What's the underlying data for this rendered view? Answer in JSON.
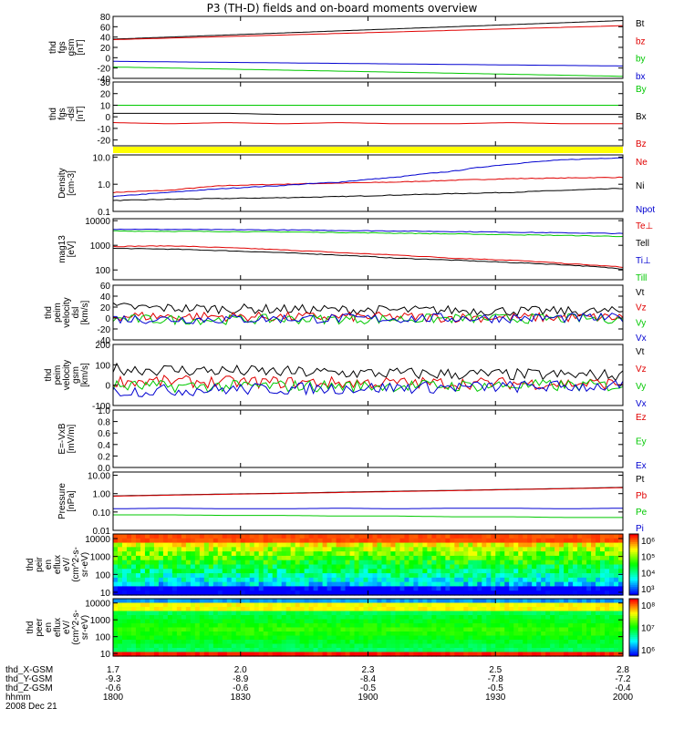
{
  "title": "P3 (TH-D) fields and on-board moments overview",
  "chart_data": [
    {
      "id": "fgs_gsm",
      "type": "line",
      "ylabel": [
        "thd",
        "fgs",
        "gsm",
        "[nT]"
      ],
      "ylim": [
        -40,
        80
      ],
      "ticks": [
        {
          "v": 80,
          "l": "80"
        },
        {
          "v": 60,
          "l": "60"
        },
        {
          "v": 40,
          "l": "40"
        },
        {
          "v": 20,
          "l": "20"
        },
        {
          "v": 0,
          "l": "0"
        },
        {
          "v": -20,
          "l": "-20"
        },
        {
          "v": -40,
          "l": "-40"
        }
      ],
      "series": [
        {
          "name": "Bt",
          "color": "#000000",
          "values": [
            36,
            40,
            44,
            48,
            52,
            56,
            60,
            64,
            68,
            72
          ]
        },
        {
          "name": "bz",
          "color": "#e00000",
          "values": [
            35,
            38,
            41,
            44,
            47,
            50,
            53,
            56,
            59,
            62
          ]
        },
        {
          "name": "by",
          "color": "#00c800",
          "values": [
            -18,
            -20,
            -22,
            -24,
            -26,
            -28,
            -30,
            -32,
            -34,
            -36
          ]
        },
        {
          "name": "bx",
          "color": "#0000d0",
          "values": [
            -7,
            -8,
            -9,
            -10,
            -11,
            -12,
            -13,
            -14,
            -15,
            -16
          ]
        }
      ]
    },
    {
      "id": "fgs_dsl",
      "type": "line",
      "ylabel": [
        "thd",
        "fgs",
        "-dsl",
        "[nT]"
      ],
      "ylim": [
        -25,
        30
      ],
      "ticks": [
        {
          "v": 30,
          "l": "30"
        },
        {
          "v": 20,
          "l": "20"
        },
        {
          "v": 10,
          "l": "10"
        },
        {
          "v": 0,
          "l": "0"
        },
        {
          "v": -10,
          "l": "-10"
        },
        {
          "v": -20,
          "l": "-20"
        }
      ],
      "series": [
        {
          "name": "By",
          "color": "#00c800",
          "values": [
            10,
            10,
            10,
            10,
            10,
            10,
            10,
            10,
            10,
            10
          ]
        },
        {
          "name": "Bx",
          "color": "#000000",
          "values": [
            3,
            3,
            3,
            2,
            2,
            2,
            2,
            2,
            2,
            2
          ]
        },
        {
          "name": "Bz",
          "color": "#e00000",
          "values": [
            -5,
            -6,
            -5,
            -6,
            -5,
            -6,
            -6,
            -5,
            -6,
            -6
          ]
        }
      ]
    },
    {
      "id": "density",
      "type": "line",
      "log": true,
      "ylabel": [
        "Density",
        "[cm-3]"
      ],
      "ylim": [
        0.1,
        12
      ],
      "ticks": [
        {
          "v": 10,
          "l": "10.0"
        },
        {
          "v": 1,
          "l": "1.0"
        },
        {
          "v": 0.1,
          "l": "0.1"
        }
      ],
      "series": [
        {
          "name": "Ne",
          "color": "#e00000",
          "values": [
            0.5,
            0.6,
            0.9,
            1.0,
            1.1,
            1.2,
            1.4,
            1.6,
            1.7,
            1.8
          ]
        },
        {
          "name": "Ni",
          "color": "#000000",
          "values": [
            0.25,
            0.28,
            0.3,
            0.32,
            0.35,
            0.4,
            0.45,
            0.5,
            0.6,
            0.7
          ]
        },
        {
          "name": "Npot",
          "color": "#0000d0",
          "values": [
            0.35,
            0.5,
            0.7,
            0.9,
            1.2,
            1.8,
            3,
            5.5,
            8,
            9.5
          ]
        }
      ]
    },
    {
      "id": "temp",
      "type": "line",
      "log": true,
      "ylabel": [
        "mag13",
        "[eV]"
      ],
      "ylim": [
        40,
        12000
      ],
      "ticks": [
        {
          "v": 10000,
          "l": "10000"
        },
        {
          "v": 1000,
          "l": "1000"
        },
        {
          "v": 100,
          "l": "100"
        }
      ],
      "series": [
        {
          "name": "Te⊥",
          "color": "#e00000",
          "values": [
            900,
            950,
            800,
            650,
            500,
            400,
            300,
            250,
            180,
            130
          ]
        },
        {
          "name": "Tell",
          "color": "#000000",
          "values": [
            750,
            700,
            600,
            500,
            400,
            300,
            250,
            200,
            160,
            110
          ]
        },
        {
          "name": "Ti⊥",
          "color": "#0000d0",
          "values": [
            4500,
            4400,
            4300,
            4200,
            4000,
            3800,
            3600,
            3400,
            3200,
            3000
          ]
        },
        {
          "name": "Till",
          "color": "#00c800",
          "values": [
            3800,
            3700,
            3600,
            3500,
            3300,
            3100,
            2900,
            2700,
            2500,
            2300
          ]
        }
      ]
    },
    {
      "id": "peim_dsl",
      "type": "line",
      "ylabel": [
        "thd",
        "peim",
        "velocity",
        "dsl",
        "[km/s]"
      ],
      "ylim": [
        -40,
        60
      ],
      "ticks": [
        {
          "v": 60,
          "l": "60"
        },
        {
          "v": 40,
          "l": "40"
        },
        {
          "v": 20,
          "l": "20"
        },
        {
          "v": 0,
          "l": "0"
        },
        {
          "v": -20,
          "l": "-20"
        },
        {
          "v": -40,
          "l": "-40"
        }
      ],
      "series": [
        {
          "name": "Vt",
          "color": "#000000",
          "values": [
            20,
            18,
            17,
            16,
            15,
            14,
            14,
            13,
            12,
            12
          ]
        },
        {
          "name": "Vz",
          "color": "#e00000",
          "values": [
            4,
            3,
            3,
            2,
            2,
            2,
            1,
            1,
            1,
            1
          ]
        },
        {
          "name": "Vy",
          "color": "#00c800",
          "values": [
            -2,
            -3,
            -3,
            -2,
            -2,
            -2,
            -1,
            -1,
            -1,
            -1
          ]
        },
        {
          "name": "Vx",
          "color": "#0000d0",
          "values": [
            -1,
            -2,
            -2,
            -1,
            -1,
            -1,
            0,
            0,
            0,
            0
          ]
        }
      ]
    },
    {
      "id": "peim_gsm",
      "type": "line",
      "ylabel": [
        "thd",
        "peim",
        "velocity",
        "gsm",
        "[km/s]"
      ],
      "ylim": [
        -100,
        200
      ],
      "ticks": [
        {
          "v": 200,
          "l": "200"
        },
        {
          "v": 100,
          "l": "100"
        },
        {
          "v": 0,
          "l": "0"
        },
        {
          "v": -100,
          "l": "-100"
        }
      ],
      "series": [
        {
          "name": "Vt",
          "color": "#000000",
          "values": [
            80,
            75,
            70,
            65,
            60,
            58,
            55,
            52,
            50,
            48
          ]
        },
        {
          "name": "Vz",
          "color": "#e00000",
          "values": [
            20,
            18,
            15,
            14,
            12,
            11,
            10,
            9,
            8,
            8
          ]
        },
        {
          "name": "Vy",
          "color": "#00c800",
          "values": [
            -5,
            -6,
            -5,
            -4,
            -4,
            -3,
            -3,
            -2,
            -2,
            -2
          ]
        },
        {
          "name": "Vx",
          "color": "#0000d0",
          "values": [
            -30,
            -25,
            -20,
            -18,
            -15,
            -12,
            -10,
            -8,
            -6,
            -5
          ]
        }
      ]
    },
    {
      "id": "efield",
      "type": "line",
      "ylabel": [
        "E=-VxB",
        "[mV/m]"
      ],
      "ylim": [
        0,
        1
      ],
      "ticks": [
        {
          "v": 1,
          "l": "1.0"
        },
        {
          "v": 0.8,
          "l": "0.8"
        },
        {
          "v": 0.6,
          "l": "0.6"
        },
        {
          "v": 0.4,
          "l": "0.4"
        },
        {
          "v": 0.2,
          "l": "0.2"
        },
        {
          "v": 0,
          "l": "0.0"
        }
      ],
      "series": [
        {
          "name": "Ez",
          "color": "#e00000",
          "values": []
        },
        {
          "name": "Ey",
          "color": "#00c800",
          "values": []
        },
        {
          "name": "Ex",
          "color": "#0000d0",
          "values": []
        }
      ]
    },
    {
      "id": "pressure",
      "type": "line",
      "log": true,
      "ylabel": [
        "Pressure",
        "[nPa]"
      ],
      "ylim": [
        0.01,
        15
      ],
      "ticks": [
        {
          "v": 10,
          "l": "10.00"
        },
        {
          "v": 1,
          "l": "1.00"
        },
        {
          "v": 0.1,
          "l": "0.10"
        },
        {
          "v": 0.01,
          "l": "0.01"
        }
      ],
      "series": [
        {
          "name": "Pt",
          "color": "#000000",
          "values": [
            0.75,
            0.85,
            0.95,
            1.05,
            1.2,
            1.35,
            1.5,
            1.7,
            1.9,
            2.2
          ]
        },
        {
          "name": "Pb",
          "color": "#e00000",
          "values": [
            0.72,
            0.82,
            0.92,
            1.02,
            1.15,
            1.3,
            1.45,
            1.65,
            1.85,
            2.1
          ]
        },
        {
          "name": "Pe",
          "color": "#00c800",
          "values": [
            0.07,
            0.07,
            0.065,
            0.065,
            0.06,
            0.06,
            0.055,
            0.055,
            0.05,
            0.05
          ]
        },
        {
          "name": "Pi",
          "color": "#0000d0",
          "values": [
            0.15,
            0.16,
            0.15,
            0.15,
            0.16,
            0.15,
            0.16,
            0.16,
            0.15,
            0.16
          ]
        }
      ]
    },
    {
      "id": "peir_spec",
      "type": "heatmap",
      "log": true,
      "ylabel": [
        "thd",
        "peir",
        "en",
        "eflux",
        "eV/",
        "(cm^2-s-",
        "sr-eV)"
      ],
      "ylim": [
        7,
        18000
      ],
      "ticks": [
        {
          "v": 10000,
          "l": "10000"
        },
        {
          "v": 1000,
          "l": "1000"
        },
        {
          "v": 100,
          "l": "100"
        },
        {
          "v": 10,
          "l": "10"
        }
      ],
      "colorbar": {
        "ticks": [
          "10⁶",
          "10⁵",
          "10⁴",
          "10³"
        ]
      }
    },
    {
      "id": "peer_spec",
      "type": "heatmap",
      "log": true,
      "ylabel": [
        "thd",
        "peer",
        "en",
        "eflux",
        "eV/",
        "(cm^2-s-",
        "sr-eV)"
      ],
      "ylim": [
        7,
        18000
      ],
      "ticks": [
        {
          "v": 10000,
          "l": "10000"
        },
        {
          "v": 1000,
          "l": "1000"
        },
        {
          "v": 100,
          "l": "100"
        },
        {
          "v": 10,
          "l": "10"
        }
      ],
      "colorbar": {
        "ticks": [
          "10⁸",
          "10⁷",
          "10⁶"
        ]
      }
    }
  ],
  "footer": {
    "rows": [
      {
        "label": "thd_X-GSM",
        "values": [
          "1.7",
          "2.0",
          "2.3",
          "2.5",
          "2.8"
        ]
      },
      {
        "label": "thd_Y-GSM",
        "values": [
          "-9.3",
          "-8.9",
          "-8.4",
          "-7.8",
          "-7.2"
        ]
      },
      {
        "label": "thd_Z-GSM",
        "values": [
          "-0.6",
          "-0.6",
          "-0.5",
          "-0.5",
          "-0.4"
        ]
      },
      {
        "label": "hhmm",
        "values": [
          "1800",
          "1830",
          "1900",
          "1930",
          "2000"
        ]
      }
    ],
    "date": "2008 Dec 21"
  }
}
